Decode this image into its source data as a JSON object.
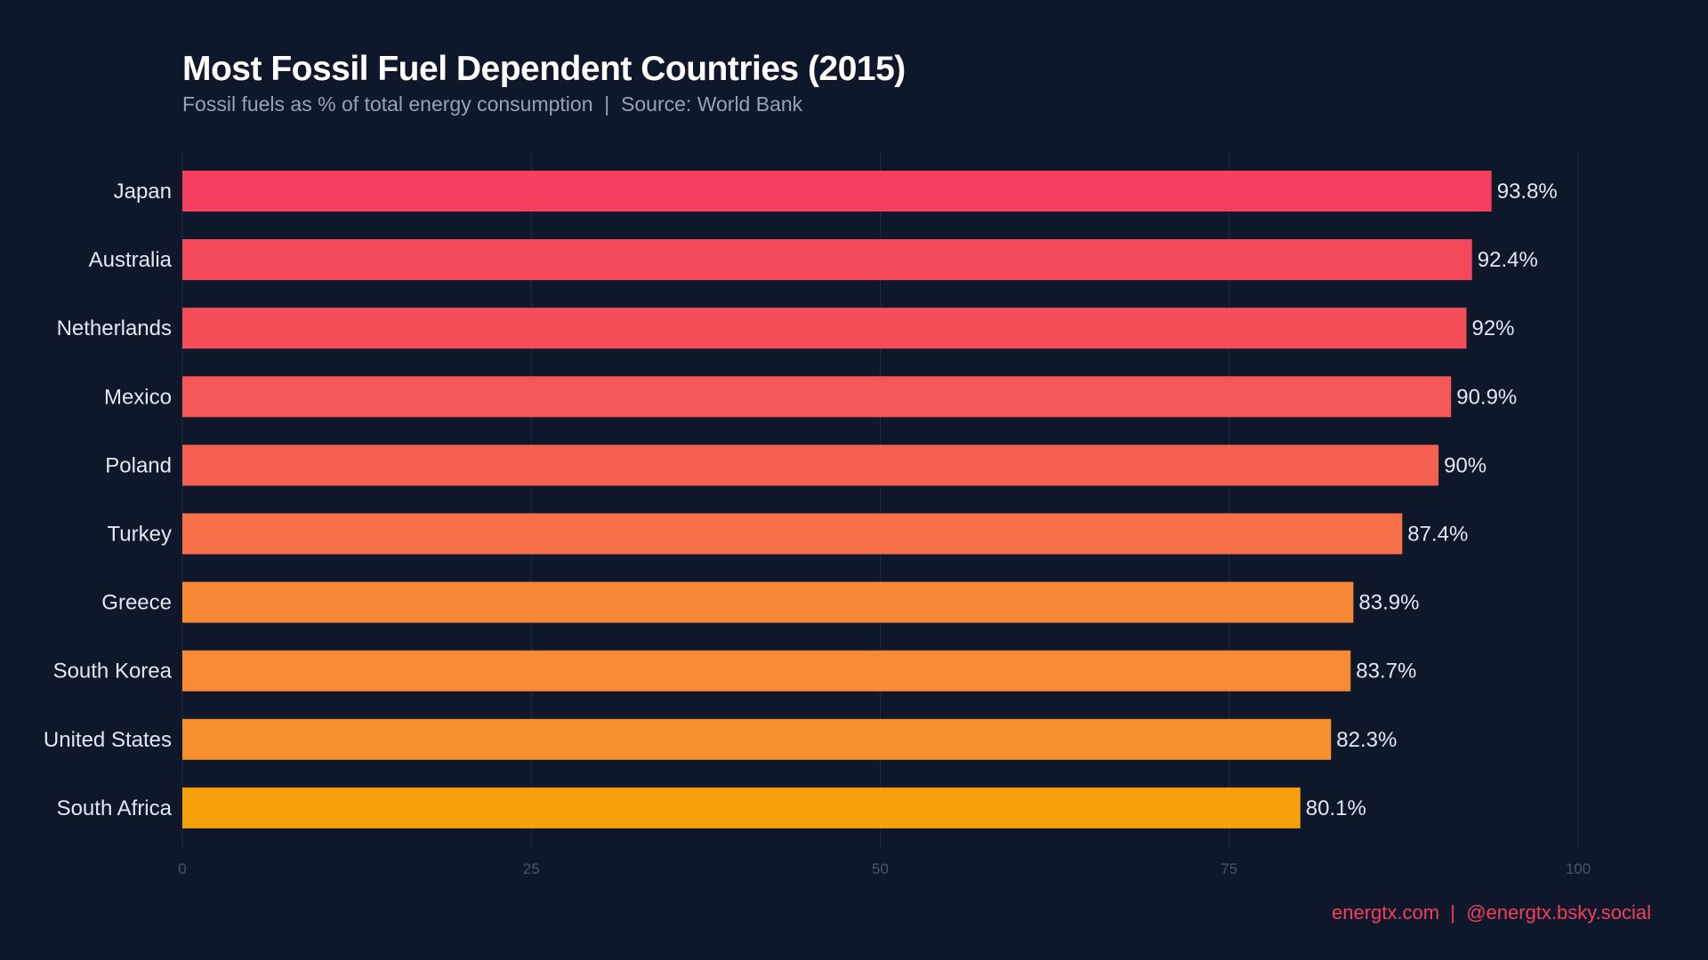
{
  "chart_data": {
    "type": "bar",
    "orientation": "horizontal",
    "title": "Most Fossil Fuel Dependent Countries (2015)",
    "subtitle": "Fossil fuels as % of total energy consumption  |  Source: World Bank",
    "categories": [
      "Japan",
      "Australia",
      "Netherlands",
      "Mexico",
      "Poland",
      "Turkey",
      "Greece",
      "South Korea",
      "United States",
      "South Africa"
    ],
    "values": [
      93.8,
      92.4,
      92,
      90.9,
      90,
      87.4,
      83.9,
      83.7,
      82.3,
      80.1
    ],
    "data_labels": [
      "93.8%",
      "92.4%",
      "92%",
      "90.9%",
      "90%",
      "87.4%",
      "83.9%",
      "83.7%",
      "82.3%",
      "80.1%"
    ],
    "colors": [
      "#f43f5e",
      "#f4495b",
      "#f44e59",
      "#f45755",
      "#f56151",
      "#f6704a",
      "#f78836",
      "#f78a34",
      "#f68f2e",
      "#f5a00b"
    ],
    "xlim": [
      0,
      100
    ],
    "xticks": [
      0,
      25,
      50,
      75,
      100
    ],
    "xtick_labels": [
      "0",
      "25",
      "50",
      "75",
      "100"
    ],
    "grid": true,
    "background": "#0f172a"
  },
  "footer": "energtx.com  |  @energtx.bsky.social"
}
